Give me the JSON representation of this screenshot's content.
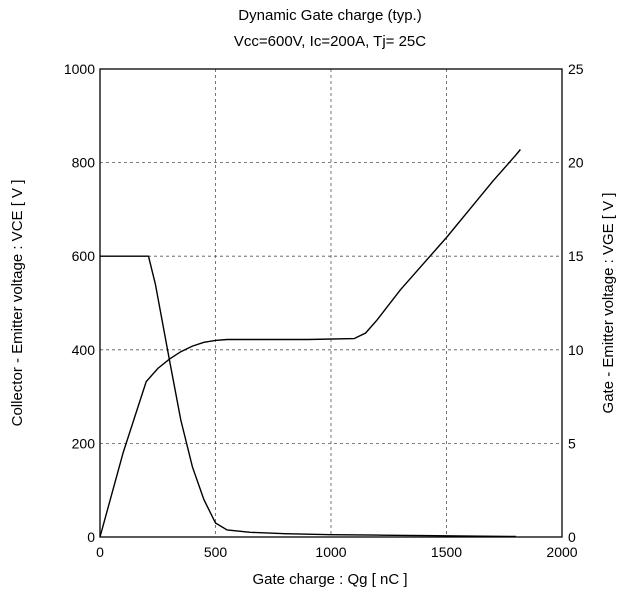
{
  "chart_data": {
    "type": "line",
    "title": "Dynamic Gate charge  (typ.)",
    "subtitle": "Vcc=600V, Ic=200A, Tj= 25C",
    "xlabel": "Gate charge : Qg  [ nC ]",
    "ylabel_left": "Collector - Emitter voltage : VCE  [ V ]",
    "ylabel_right": "Gate - Emitter voltage : VGE  [ V ]",
    "xlim": [
      0,
      2000
    ],
    "ylim_left": [
      0,
      1000
    ],
    "ylim_right": [
      0,
      25
    ],
    "xticks": [
      0,
      500,
      1000,
      1500,
      2000
    ],
    "yticks_left": [
      0,
      200,
      400,
      600,
      800,
      1000
    ],
    "yticks_right": [
      0,
      5,
      10,
      15,
      20,
      25
    ],
    "grid": true,
    "series": [
      {
        "axis": "left",
        "x": [
          0,
          210,
          240,
          300,
          350,
          400,
          450,
          500,
          550,
          650,
          800,
          1000,
          1200,
          1400,
          1600,
          1800
        ],
        "y": [
          600,
          600,
          540,
          380,
          250,
          150,
          80,
          30,
          15,
          10,
          7,
          5,
          4,
          3,
          2,
          1
        ]
      },
      {
        "axis": "right",
        "x": [
          0,
          100,
          200,
          250,
          300,
          350,
          400,
          450,
          500,
          550,
          700,
          900,
          1100,
          1150,
          1200,
          1300,
          1400,
          1500,
          1600,
          1700,
          1800,
          1820
        ],
        "y": [
          0,
          4.5,
          8.3,
          9.0,
          9.5,
          9.9,
          10.2,
          10.4,
          10.5,
          10.55,
          10.55,
          10.55,
          10.6,
          10.9,
          11.6,
          13.2,
          14.6,
          16.0,
          17.5,
          19.0,
          20.4,
          20.7
        ]
      }
    ]
  }
}
